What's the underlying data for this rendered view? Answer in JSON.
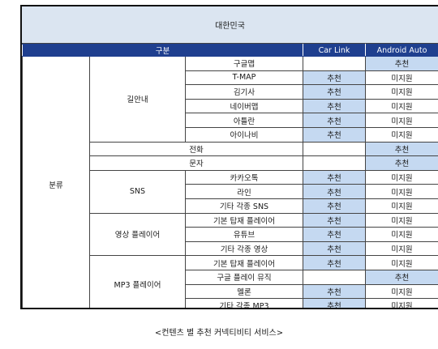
{
  "country": "대한민국",
  "headers": {
    "category": "구분",
    "carlink": "Car Link",
    "android": "Android Auto"
  },
  "group_label": "분류",
  "sections": {
    "nav": "길안내",
    "sns": "SNS",
    "video": "영상 플레이어",
    "mp3": "MP3 플레이어"
  },
  "rows": [
    {
      "name": "구글맵",
      "carlink": "",
      "android": "추천"
    },
    {
      "name": "T-MAP",
      "carlink": "추천",
      "android": "미지원"
    },
    {
      "name": "김기사",
      "carlink": "추천",
      "android": "미지원"
    },
    {
      "name": "네이버맵",
      "carlink": "추천",
      "android": "미지원"
    },
    {
      "name": "아틀란",
      "carlink": "추천",
      "android": "미지원"
    },
    {
      "name": "아이나비",
      "carlink": "추천",
      "android": "미지원"
    },
    {
      "name": "전화",
      "carlink": "",
      "android": "추천"
    },
    {
      "name": "문자",
      "carlink": "",
      "android": "추천"
    },
    {
      "name": "카카오톡",
      "carlink": "추천",
      "android": "미지원"
    },
    {
      "name": "라인",
      "carlink": "추천",
      "android": "미지원"
    },
    {
      "name": "기타 각종 SNS",
      "carlink": "추천",
      "android": "미지원"
    },
    {
      "name": "기본 탑재 플레이어",
      "carlink": "추천",
      "android": "미지원"
    },
    {
      "name": "유튜브",
      "carlink": "추천",
      "android": "미지원"
    },
    {
      "name": "기타 각종 영상",
      "carlink": "추천",
      "android": "미지원"
    },
    {
      "name": "기본 탑재 플레이어",
      "carlink": "추천",
      "android": "미지원"
    },
    {
      "name": "구글 플레이 뮤직",
      "carlink": "",
      "android": "추천"
    },
    {
      "name": "멜론",
      "carlink": "추천",
      "android": "미지원"
    },
    {
      "name": "기타 각종 MP3",
      "carlink": "추천",
      "android": "미지원"
    }
  ],
  "caption": "<컨텐츠 별 추천 커넥티비티 서비스>",
  "colors": {
    "header_bg": "#1f3f8f",
    "recommended_bg": "#c5d9f1",
    "country_bg": "#dbe5f1"
  }
}
